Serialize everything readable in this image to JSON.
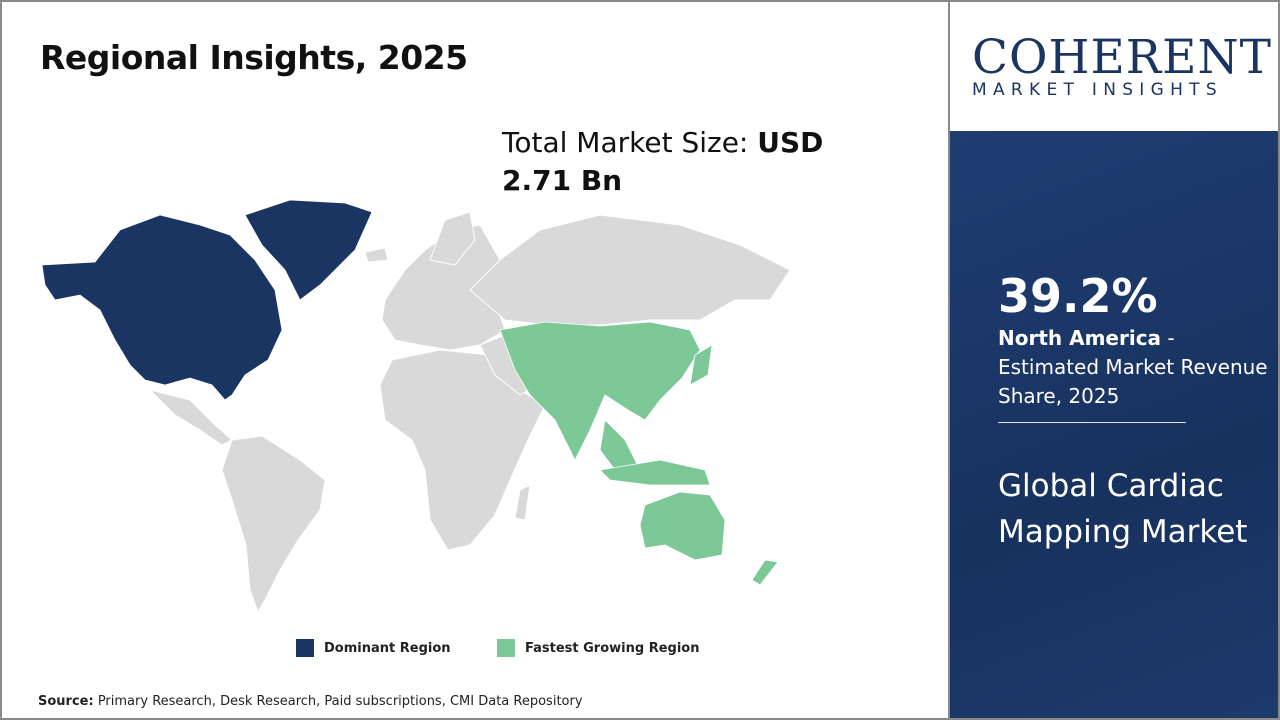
{
  "title": "Regional Insights, 2025",
  "market_size": {
    "label": "Total Market Size: ",
    "value": "USD 2.71 Bn"
  },
  "map": {
    "regions": [
      {
        "name": "North America",
        "category": "Dominant Region",
        "color": "#1b3563"
      },
      {
        "name": "Asia Pacific",
        "category": "Fastest Growing Region",
        "color": "#7cc997"
      }
    ],
    "other_color": "#d9d9d9"
  },
  "legend": [
    {
      "label": "Dominant Region",
      "color": "#1b3563"
    },
    {
      "label": "Fastest Growing Region",
      "color": "#7cc997"
    }
  ],
  "source": {
    "label": "Source:",
    "text": " Primary Research, Desk Research, Paid subscriptions, CMI Data Repository"
  },
  "logo": {
    "main": "COHERENT",
    "sub": "MARKET INSIGHTS"
  },
  "panel": {
    "share": "39.2%",
    "region": "North America",
    "description": " - Estimated Market Revenue Share, 2025",
    "market_name": "Global Cardiac Mapping Market"
  }
}
